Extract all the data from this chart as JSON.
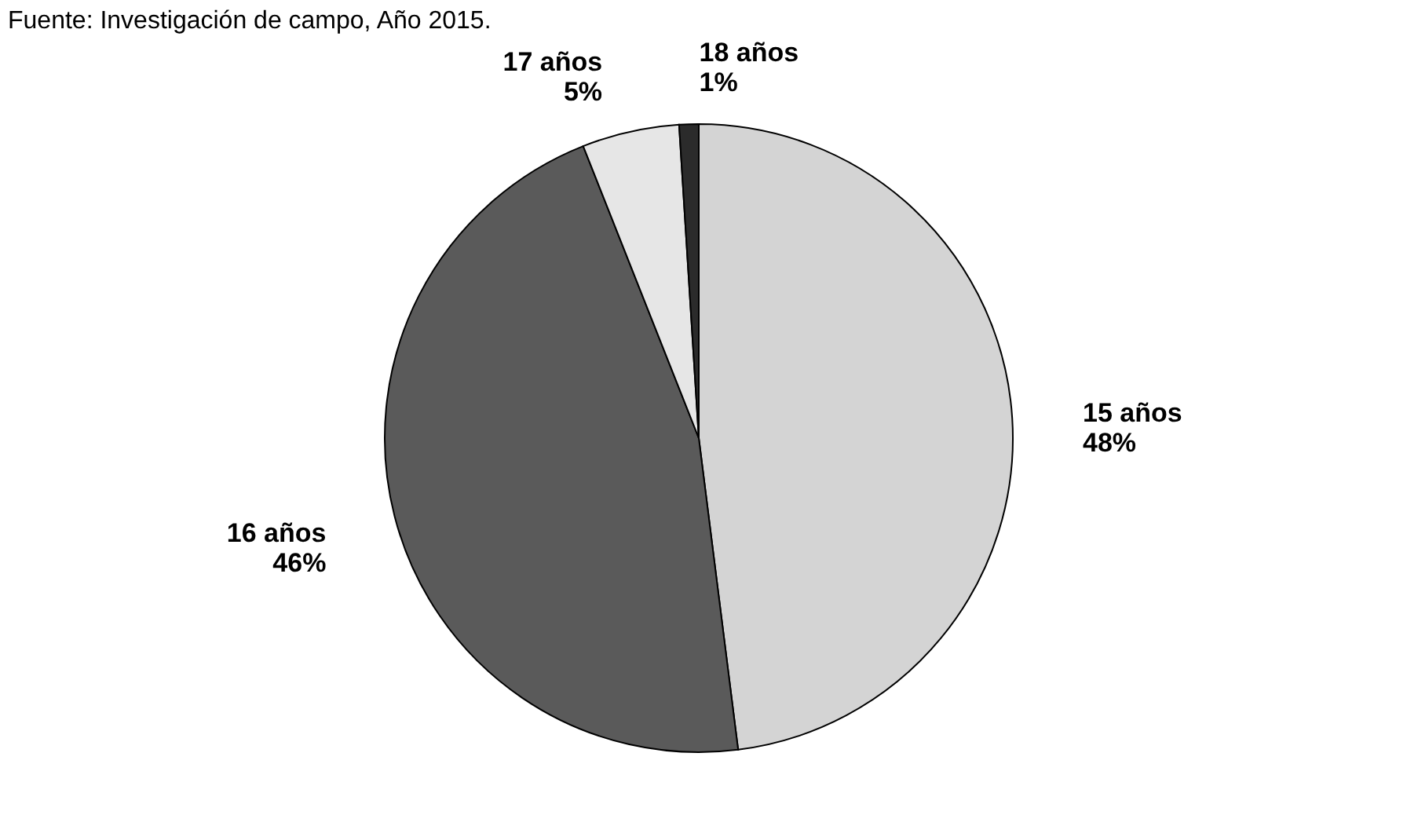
{
  "chart_data": {
    "type": "pie",
    "categories": [
      "15 años",
      "16 años",
      "17 años",
      "18 años"
    ],
    "values": [
      48,
      46,
      5,
      1
    ],
    "value_labels": [
      "48%",
      "46%",
      "5%",
      "1%"
    ],
    "colors": [
      "#d4d4d4",
      "#5a5a5a",
      "#e6e6e6",
      "#2b2b2b"
    ],
    "annotations": [
      "Fuente: Investigación de campo, Año 2015."
    ],
    "legend": false
  }
}
